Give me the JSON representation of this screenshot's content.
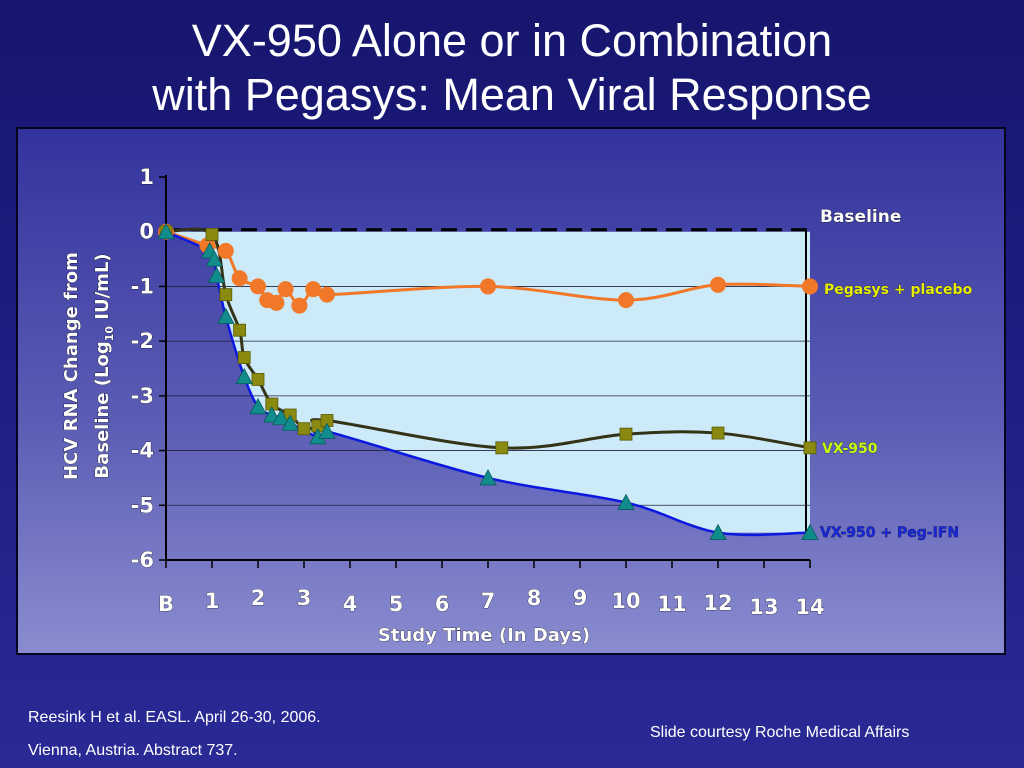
{
  "slide": {
    "title_line1": "VX-950 Alone or in Combination",
    "title_line2": "with Pegasys: Mean Viral Response",
    "reference_line1": "Reesink H et al. EASL. April 26-30, 2006.",
    "reference_line2": "Vienna, Austria. Abstract 737.",
    "courtesy": "Slide courtesy Roche Medical Affairs"
  },
  "colors": {
    "background": "#1d1d80",
    "panel": "#5a5cb4",
    "plot_fill": "#cdeaf8",
    "pegasys": "#f07828",
    "vx950": "#333318",
    "vx950_marker": "#8a8a10",
    "vx950_peg_line": "#0a18e0",
    "vx950_peg_marker": "#108c8c",
    "baseline": "#000000"
  },
  "chart_data": {
    "type": "line",
    "title": "",
    "xlabel": "Study Time (In Days)",
    "ylabel_line1": "HCV RNA Change from",
    "ylabel_line2_pre": "Baseline (Log",
    "ylabel_sub": "10",
    "ylabel_line2_post": " IU/mL)",
    "xlim": [
      0,
      14
    ],
    "ylim": [
      -6,
      1
    ],
    "x_tick_labels": [
      "B",
      "1",
      "2",
      "3",
      "4",
      "5",
      "6",
      "7",
      "8",
      "9",
      "10",
      "11",
      "12",
      "13",
      "14"
    ],
    "y_ticks": [
      1,
      0,
      -1,
      -2,
      -3,
      -4,
      -5,
      -6
    ],
    "baseline": {
      "name": "Baseline",
      "y": 0
    },
    "series": [
      {
        "name": "Pegasys + placebo",
        "marker": "circle",
        "points": [
          [
            0,
            0
          ],
          [
            0.9,
            -0.25
          ],
          [
            1.3,
            -0.35
          ],
          [
            1.6,
            -0.85
          ],
          [
            2.0,
            -1.0
          ],
          [
            2.2,
            -1.25
          ],
          [
            2.4,
            -1.3
          ],
          [
            2.6,
            -1.05
          ],
          [
            2.9,
            -1.35
          ],
          [
            3.2,
            -1.05
          ],
          [
            3.5,
            -1.15
          ],
          [
            7,
            -1.0
          ],
          [
            10,
            -1.25
          ],
          [
            12,
            -0.97
          ],
          [
            14,
            -1.0
          ]
        ]
      },
      {
        "name": "VX-950",
        "marker": "square",
        "points": [
          [
            0,
            0
          ],
          [
            1.0,
            -0.05
          ],
          [
            1.3,
            -1.15
          ],
          [
            1.6,
            -1.8
          ],
          [
            1.7,
            -2.3
          ],
          [
            2.0,
            -2.7
          ],
          [
            2.3,
            -3.15
          ],
          [
            2.7,
            -3.35
          ],
          [
            3.0,
            -3.6
          ],
          [
            3.3,
            -3.55
          ],
          [
            3.5,
            -3.45
          ],
          [
            7.3,
            -3.95
          ],
          [
            10,
            -3.7
          ],
          [
            12,
            -3.68
          ],
          [
            14,
            -3.95
          ]
        ]
      },
      {
        "name": "VX-950 + Peg-IFN",
        "marker": "triangle",
        "points": [
          [
            0,
            0
          ],
          [
            0.95,
            -0.35
          ],
          [
            1.05,
            -0.5
          ],
          [
            1.1,
            -0.8
          ],
          [
            1.3,
            -1.55
          ],
          [
            1.7,
            -2.65
          ],
          [
            2.0,
            -3.2
          ],
          [
            2.3,
            -3.35
          ],
          [
            2.5,
            -3.4
          ],
          [
            2.7,
            -3.5
          ],
          [
            3.3,
            -3.75
          ],
          [
            3.5,
            -3.65
          ],
          [
            7,
            -4.5
          ],
          [
            10,
            -4.95
          ],
          [
            12,
            -5.5
          ],
          [
            14,
            -5.5
          ]
        ]
      }
    ]
  }
}
